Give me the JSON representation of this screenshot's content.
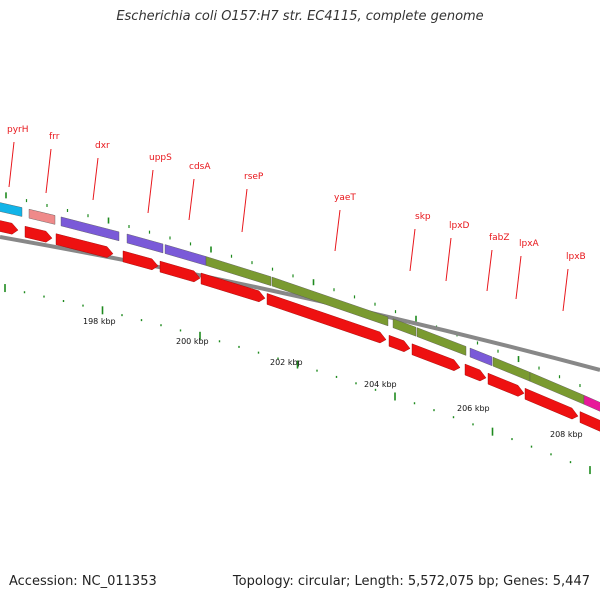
{
  "title": "Escherichia coli O157:H7 str. EC4115, complete genome",
  "accession": "Accession: NC_011353",
  "summary": "Topology: circular; Length: 5,572,075 bp; Genes: 5,447",
  "colors": {
    "label": "#e8161b",
    "backbone": "#888888",
    "cds": "#ee1111",
    "tick": "#1e8a1e",
    "cyan": "#12b4e8",
    "salmon": "#ef8a8a",
    "purple": "#7a5ad8",
    "olive": "#7a9a30",
    "magenta": "#e8189a"
  },
  "gene_labels": [
    "pyrH",
    "frr",
    "dxr",
    "uppS",
    "cdsA",
    "rseP",
    "yaeT",
    "skp",
    "lpxD",
    "fabZ",
    "lpxA",
    "lpxB"
  ],
  "scale_labels": [
    "198 kbp",
    "200 kbp",
    "202 kbp",
    "204 kbp",
    "206 kbp",
    "208 kbp"
  ]
}
